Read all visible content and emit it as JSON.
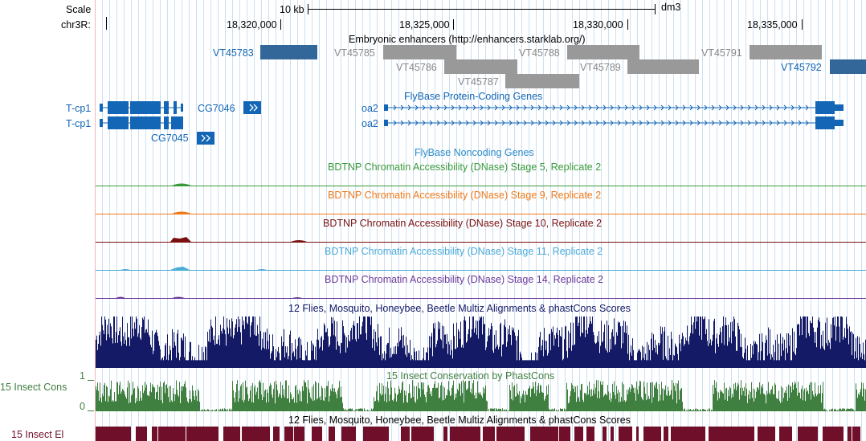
{
  "colors": {
    "grid": "#cbe0f5",
    "gene": "#1366b5",
    "enhancer_dark": "#336699",
    "enhancer_gray": "#999999",
    "enhancer_gray_label": "#888888",
    "stage5": "#3a9a3a",
    "stage9": "#f07a1a",
    "stage10": "#7a1010",
    "stage11": "#4aaad8",
    "stage14": "#6a3a9a",
    "multiz": "#141a66",
    "insect_cons": "#3f7f3f",
    "insect_el": "#6f0f2a",
    "noncoding_title": "#2a8ac8"
  },
  "ruler": {
    "scale_label": "Scale",
    "chrom_label": "chr3R:",
    "scale_bar_text": "10 kb",
    "assembly": "dm3",
    "positions": [
      "18,320,000",
      "18,325,000",
      "18,330,000",
      "18,335,000"
    ]
  },
  "tracks": {
    "enhancers_title": "Embryonic enhancers (http://enhancers.starklab.org/)",
    "enhancers": [
      {
        "name": "VT45783",
        "shade": "dark"
      },
      {
        "name": "VT45785",
        "shade": "gray"
      },
      {
        "name": "VT45786",
        "shade": "gray"
      },
      {
        "name": "VT45787",
        "shade": "gray"
      },
      {
        "name": "VT45788",
        "shade": "gray"
      },
      {
        "name": "VT45789",
        "shade": "gray"
      },
      {
        "name": "VT45791",
        "shade": "gray"
      },
      {
        "name": "VT45792",
        "shade": "dark"
      }
    ],
    "protein_coding_title": "FlyBase Protein-Coding Genes",
    "genes": [
      "T-cp1",
      "T-cp1",
      "CG7046",
      "CG7045",
      "oa2",
      "oa2"
    ],
    "noncoding_title": "FlyBase Noncoding Genes",
    "dnase_tracks": [
      {
        "title": "BDTNP Chromatin Accessibility (DNase) Stage 5, Replicate 2"
      },
      {
        "title": "BDTNP Chromatin Accessibility (DNase) Stage 9, Replicate 2"
      },
      {
        "title": "BDTNP Chromatin Accessibility (DNase) Stage 10, Replicate 2"
      },
      {
        "title": "BDTNP Chromatin Accessibility (DNase) Stage 11, Replicate 2"
      },
      {
        "title": "BDTNP Chromatin Accessibility (DNase) Stage 14, Replicate 2"
      }
    ],
    "multiz_title": "12 Flies, Mosquito, Honeybee, Beetle Multiz Alignments & phastCons Scores",
    "insect_cons_title": "15 Insect Conservation by PhastCons",
    "insect_cons_label": "15 Insect Cons",
    "insect_cons_ymax": "1",
    "insect_cons_ymin": "0",
    "insect_el_title": "12 Flies, Mosquito, Honeybee, Beetle Multiz Alignments & phastCons Scores",
    "insect_el_label": "15 Insect El"
  }
}
